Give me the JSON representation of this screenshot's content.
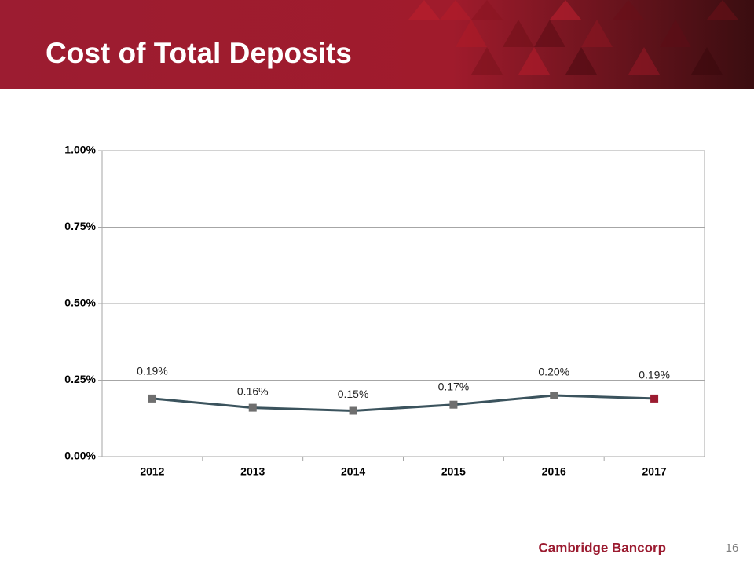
{
  "chart_data": {
    "type": "line",
    "title": "Cost of Total Deposits",
    "categories": [
      "2012",
      "2013",
      "2014",
      "2015",
      "2016",
      "2017"
    ],
    "values": [
      0.19,
      0.16,
      0.15,
      0.17,
      0.2,
      0.19
    ],
    "value_labels": [
      "0.19%",
      "0.16%",
      "0.15%",
      "0.17%",
      "0.20%",
      "0.19%"
    ],
    "color": "#3b535d",
    "marker_colors": [
      "#6f6f6f",
      "#6f6f6f",
      "#6f6f6f",
      "#6f6f6f",
      "#6f6f6f",
      "#9b1b30"
    ],
    "ylim": [
      0,
      1
    ],
    "yticks": [
      {
        "value": 0,
        "label": "0.00%"
      },
      {
        "value": 0.25,
        "label": "0.25%"
      },
      {
        "value": 0.5,
        "label": "0.50%"
      },
      {
        "value": 0.75,
        "label": "0.75%"
      },
      {
        "value": 1,
        "label": "1.00%"
      }
    ],
    "grid": true
  },
  "footer": {
    "brand": "Cambridge Bancorp",
    "page": "16"
  }
}
